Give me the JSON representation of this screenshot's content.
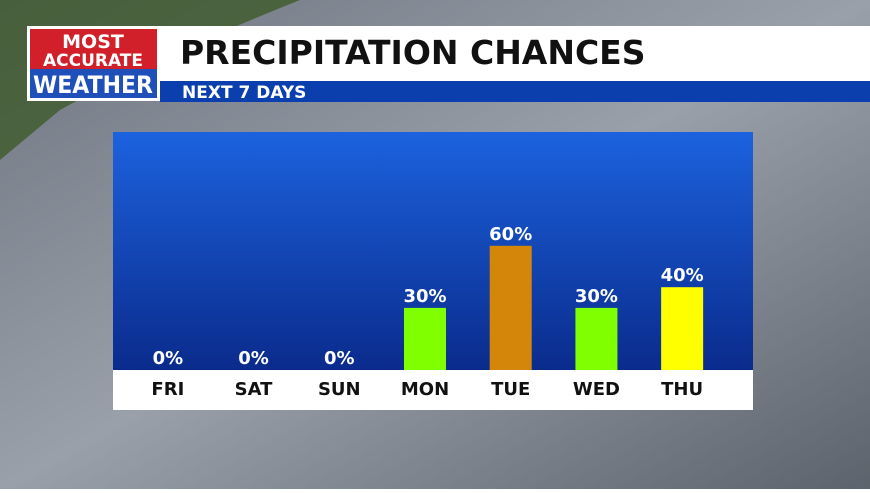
{
  "logo": {
    "lines": [
      "MOST",
      "ACCURATE",
      "WEATHER"
    ]
  },
  "chart_data": {
    "type": "bar",
    "title": "PRECIPITATION CHANCES",
    "subtitle": "NEXT 7 DAYS",
    "categories": [
      "FRI",
      "SAT",
      "SUN",
      "MON",
      "TUE",
      "WED",
      "THU"
    ],
    "values": [
      0,
      0,
      0,
      30,
      60,
      30,
      40
    ],
    "value_labels": [
      "0%",
      "0%",
      "0%",
      "30%",
      "60%",
      "30%",
      "40%"
    ],
    "colors": [
      "#7fff00",
      "#7fff00",
      "#7fff00",
      "#7fff00",
      "#d4860b",
      "#7fff00",
      "#ffff00"
    ],
    "ylim": [
      0,
      100
    ]
  }
}
